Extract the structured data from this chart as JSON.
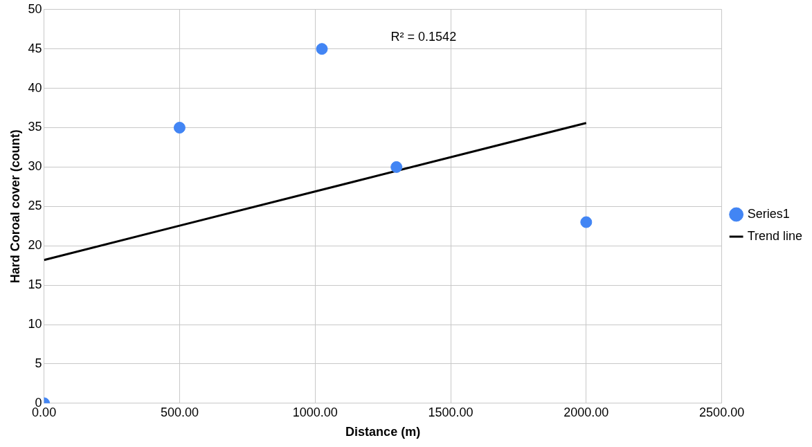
{
  "chart_data": {
    "type": "scatter",
    "xlabel": "Distance (m)",
    "ylabel": "Hard Coroal cover (count)",
    "x": [
      0,
      500,
      1025,
      1300,
      2000
    ],
    "series": [
      {
        "name": "Series1",
        "color": "#4285f4",
        "values": [
          0,
          35,
          45,
          30,
          23
        ]
      },
      {
        "name": "Trend line",
        "type": "line",
        "marker": "none",
        "color": "#000000",
        "x": [
          0,
          2000
        ],
        "values": [
          18.2,
          35.6
        ]
      }
    ],
    "annotations": [
      "R² = 0.1542"
    ],
    "xlim": [
      0,
      2500
    ],
    "xticks": [
      {
        "value": 0,
        "label": "0.00"
      },
      {
        "value": 500,
        "label": "500.00"
      },
      {
        "value": 1000,
        "label": "1000.00"
      },
      {
        "value": 1500,
        "label": "1500.00"
      },
      {
        "value": 2000,
        "label": "2000.00"
      },
      {
        "value": 2500,
        "label": "2500.00"
      }
    ],
    "ylim": [
      0,
      50
    ],
    "yticks": [
      0,
      5,
      10,
      15,
      20,
      25,
      30,
      35,
      40,
      45,
      50
    ],
    "grid": true,
    "legend": "right",
    "marker": "circle",
    "line_style": "solid"
  }
}
